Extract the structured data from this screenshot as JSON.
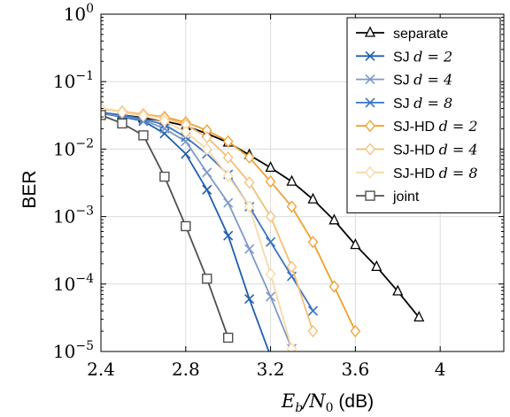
{
  "chart_data": {
    "type": "line",
    "ylabel": "BER",
    "xlabel": {
      "main": "E",
      "sub1": "b",
      "slash": "/N",
      "sub2": "0",
      "unit": " (dB)"
    },
    "x_scale": "linear",
    "y_scale": "log",
    "xlim": [
      2.4,
      4.3
    ],
    "ylim": [
      1e-05,
      1
    ],
    "x_ticks": [
      2.4,
      2.8,
      3.2,
      3.6,
      4.0
    ],
    "x_tick_labels": [
      "2.4",
      "2.8",
      "3.2",
      "3.6",
      "4"
    ],
    "y_ticks": [
      1e-05,
      0.0001,
      0.001,
      0.01,
      0.1,
      1
    ],
    "y_tick_labels": [
      {
        "base": "10",
        "exp": "−5"
      },
      {
        "base": "10",
        "exp": "−4"
      },
      {
        "base": "10",
        "exp": "−3"
      },
      {
        "base": "10",
        "exp": "−2"
      },
      {
        "base": "10",
        "exp": "−1"
      },
      {
        "base": "10",
        "exp": "0"
      }
    ],
    "grid": true,
    "legend_position": "top-right",
    "series": [
      {
        "name": "separate",
        "label": "separate",
        "param": "",
        "color": "#000000",
        "marker": "triangle",
        "x": [
          2.4,
          2.5,
          2.6,
          2.7,
          2.8,
          2.9,
          3.0,
          3.1,
          3.2,
          3.3,
          3.4,
          3.5,
          3.6,
          3.7,
          3.8,
          3.9
        ],
        "y": [
          0.033,
          0.032,
          0.029,
          0.026,
          0.022,
          0.017,
          0.0125,
          0.0082,
          0.0053,
          0.0033,
          0.0018,
          0.00088,
          0.00038,
          0.00018,
          7.8e-05,
          3.2e-05
        ]
      },
      {
        "name": "SJ d=2",
        "label": "SJ ",
        "param": "d = 2",
        "color": "#1f5fb0",
        "marker": "x",
        "x": [
          2.4,
          2.5,
          2.6,
          2.7,
          2.8,
          2.9,
          3.0,
          3.1,
          3.2
        ],
        "y": [
          0.034,
          0.03,
          0.026,
          0.017,
          0.0085,
          0.0025,
          0.00052,
          6e-05,
          8.5e-06
        ]
      },
      {
        "name": "SJ d=4",
        "label": "SJ ",
        "param": "d = 4",
        "color": "#7d99c9",
        "marker": "x",
        "x": [
          2.4,
          2.5,
          2.6,
          2.7,
          2.8,
          2.9,
          3.0,
          3.1,
          3.2,
          3.3
        ],
        "y": [
          0.034,
          0.031,
          0.027,
          0.02,
          0.013,
          0.0045,
          0.0016,
          0.00033,
          6.5e-05,
          1.1e-05
        ]
      },
      {
        "name": "SJ d=8",
        "label": "SJ ",
        "param": "d = 8",
        "color": "#3a74c4",
        "marker": "x",
        "x": [
          2.4,
          2.5,
          2.6,
          2.7,
          2.8,
          2.9,
          3.0,
          3.1,
          3.2,
          3.3,
          3.4
        ],
        "y": [
          0.035,
          0.032,
          0.028,
          0.023,
          0.015,
          0.0085,
          0.0042,
          0.0014,
          0.00042,
          0.00013,
          4e-05
        ]
      },
      {
        "name": "SJ-HD d=2",
        "label": "SJ-HD ",
        "param": "d = 2",
        "color": "#f0a030",
        "marker": "diamond",
        "x": [
          2.4,
          2.5,
          2.6,
          2.7,
          2.8,
          2.9,
          3.0,
          3.1,
          3.2,
          3.3,
          3.4,
          3.5,
          3.6
        ],
        "y": [
          0.039,
          0.036,
          0.033,
          0.03,
          0.025,
          0.019,
          0.013,
          0.0075,
          0.0033,
          0.0014,
          0.00042,
          9.2e-05,
          2e-05
        ]
      },
      {
        "name": "SJ-HD d=4",
        "label": "SJ-HD ",
        "param": "d = 4",
        "color": "#f5be78",
        "marker": "diamond",
        "x": [
          2.4,
          2.5,
          2.6,
          2.7,
          2.8,
          2.9,
          3.0,
          3.1,
          3.2,
          3.3,
          3.4
        ],
        "y": [
          0.04,
          0.036,
          0.033,
          0.029,
          0.023,
          0.015,
          0.0075,
          0.0032,
          0.001,
          0.00018,
          2e-05
        ]
      },
      {
        "name": "SJ-HD d=8",
        "label": "SJ-HD ",
        "param": "d = 8",
        "color": "#f9d8a6",
        "marker": "diamond",
        "x": [
          2.4,
          2.5,
          2.6,
          2.7,
          2.8,
          2.9,
          3.0,
          3.1,
          3.2,
          3.3
        ],
        "y": [
          0.04,
          0.035,
          0.031,
          0.026,
          0.018,
          0.01,
          0.004,
          0.0014,
          0.00014,
          1.1e-05
        ]
      },
      {
        "name": "joint",
        "label": "joint",
        "param": "",
        "color": "#505050",
        "marker": "square",
        "x": [
          2.4,
          2.5,
          2.6,
          2.7,
          2.8,
          2.9,
          3.0
        ],
        "y": [
          0.032,
          0.024,
          0.016,
          0.0039,
          0.00072,
          0.00012,
          1.6e-05
        ]
      }
    ]
  }
}
